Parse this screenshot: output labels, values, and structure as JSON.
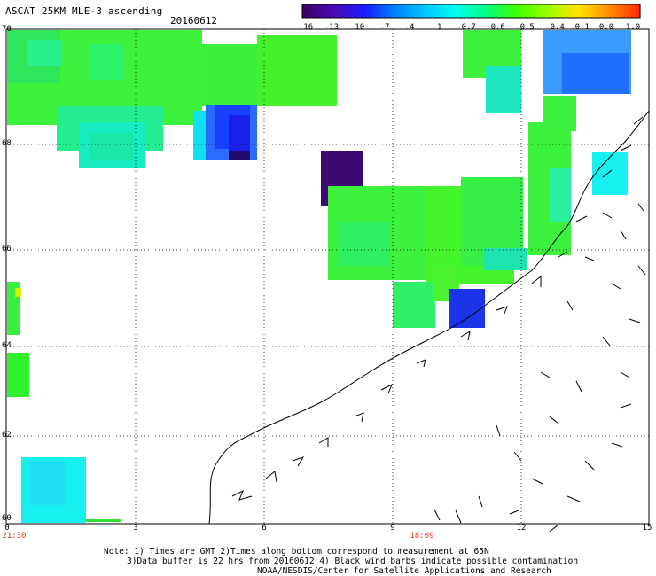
{
  "title": "ASCAT 25KM MLE-3 ascending",
  "date": "20160612",
  "colorbar": {
    "ticks": [
      "-16",
      "-13",
      "-10",
      "-7",
      "-4",
      "-1",
      "-0.7",
      "-0.6",
      "-0.5",
      "-0.4",
      "-0.1",
      "0.0",
      "1.0"
    ],
    "colors": [
      "#3c0068",
      "#4a0bb0",
      "#1a1aff",
      "#0080ff",
      "#00c8ff",
      "#00ffee",
      "#00ff80",
      "#40ff00",
      "#9cff00",
      "#ffe400",
      "#ff9000",
      "#ff2a00"
    ]
  },
  "lat_labels": [
    "70",
    "68",
    "66",
    "64",
    "62",
    "60"
  ],
  "lon_labels": [
    "0",
    "3",
    "6",
    "9",
    "12",
    "15"
  ],
  "time_labels": [
    "21:30",
    "18:09"
  ],
  "notes": {
    "line1": "Note: 1) Times are GMT 2)Times along bottom correspond to measurement at 65N",
    "line2": "3)Data buffer is 22 hrs from 20160612 4) Black wind barbs indicate possible contamination",
    "line3": "NOAA/NESDIS/Center for Satellite Applications and Research"
  },
  "map": {
    "lat_range": [
      60,
      70
    ],
    "lon_range": [
      0,
      15
    ],
    "grid": "dotted",
    "coastline": "Norway"
  }
}
